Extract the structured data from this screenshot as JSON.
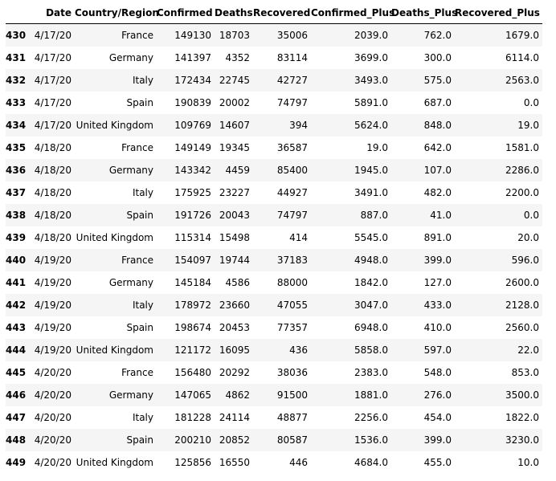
{
  "table": {
    "columns": [
      "",
      "Date",
      "Country/Region",
      "Confirmed",
      "Deaths",
      "Recovered",
      "Confirmed_Plus",
      "Deaths_Plus",
      "Recovered_Plus"
    ],
    "rows": [
      [
        "430",
        "4/17/20",
        "France",
        "149130",
        "18703",
        "35006",
        "2039.0",
        "762.0",
        "1679.0"
      ],
      [
        "431",
        "4/17/20",
        "Germany",
        "141397",
        "4352",
        "83114",
        "3699.0",
        "300.0",
        "6114.0"
      ],
      [
        "432",
        "4/17/20",
        "Italy",
        "172434",
        "22745",
        "42727",
        "3493.0",
        "575.0",
        "2563.0"
      ],
      [
        "433",
        "4/17/20",
        "Spain",
        "190839",
        "20002",
        "74797",
        "5891.0",
        "687.0",
        "0.0"
      ],
      [
        "434",
        "4/17/20",
        "United Kingdom",
        "109769",
        "14607",
        "394",
        "5624.0",
        "848.0",
        "19.0"
      ],
      [
        "435",
        "4/18/20",
        "France",
        "149149",
        "19345",
        "36587",
        "19.0",
        "642.0",
        "1581.0"
      ],
      [
        "436",
        "4/18/20",
        "Germany",
        "143342",
        "4459",
        "85400",
        "1945.0",
        "107.0",
        "2286.0"
      ],
      [
        "437",
        "4/18/20",
        "Italy",
        "175925",
        "23227",
        "44927",
        "3491.0",
        "482.0",
        "2200.0"
      ],
      [
        "438",
        "4/18/20",
        "Spain",
        "191726",
        "20043",
        "74797",
        "887.0",
        "41.0",
        "0.0"
      ],
      [
        "439",
        "4/18/20",
        "United Kingdom",
        "115314",
        "15498",
        "414",
        "5545.0",
        "891.0",
        "20.0"
      ],
      [
        "440",
        "4/19/20",
        "France",
        "154097",
        "19744",
        "37183",
        "4948.0",
        "399.0",
        "596.0"
      ],
      [
        "441",
        "4/19/20",
        "Germany",
        "145184",
        "4586",
        "88000",
        "1842.0",
        "127.0",
        "2600.0"
      ],
      [
        "442",
        "4/19/20",
        "Italy",
        "178972",
        "23660",
        "47055",
        "3047.0",
        "433.0",
        "2128.0"
      ],
      [
        "443",
        "4/19/20",
        "Spain",
        "198674",
        "20453",
        "77357",
        "6948.0",
        "410.0",
        "2560.0"
      ],
      [
        "444",
        "4/19/20",
        "United Kingdom",
        "121172",
        "16095",
        "436",
        "5858.0",
        "597.0",
        "22.0"
      ],
      [
        "445",
        "4/20/20",
        "France",
        "156480",
        "20292",
        "38036",
        "2383.0",
        "548.0",
        "853.0"
      ],
      [
        "446",
        "4/20/20",
        "Germany",
        "147065",
        "4862",
        "91500",
        "1881.0",
        "276.0",
        "3500.0"
      ],
      [
        "447",
        "4/20/20",
        "Italy",
        "181228",
        "24114",
        "48877",
        "2256.0",
        "454.0",
        "1822.0"
      ],
      [
        "448",
        "4/20/20",
        "Spain",
        "200210",
        "20852",
        "80587",
        "1536.0",
        "399.0",
        "3230.0"
      ],
      [
        "449",
        "4/20/20",
        "United Kingdom",
        "125856",
        "16550",
        "446",
        "4684.0",
        "455.0",
        "10.0"
      ]
    ]
  },
  "colors": {
    "stripe": "#f5f5f5",
    "background": "#ffffff",
    "text": "#000000",
    "header_rule": "#000000"
  }
}
